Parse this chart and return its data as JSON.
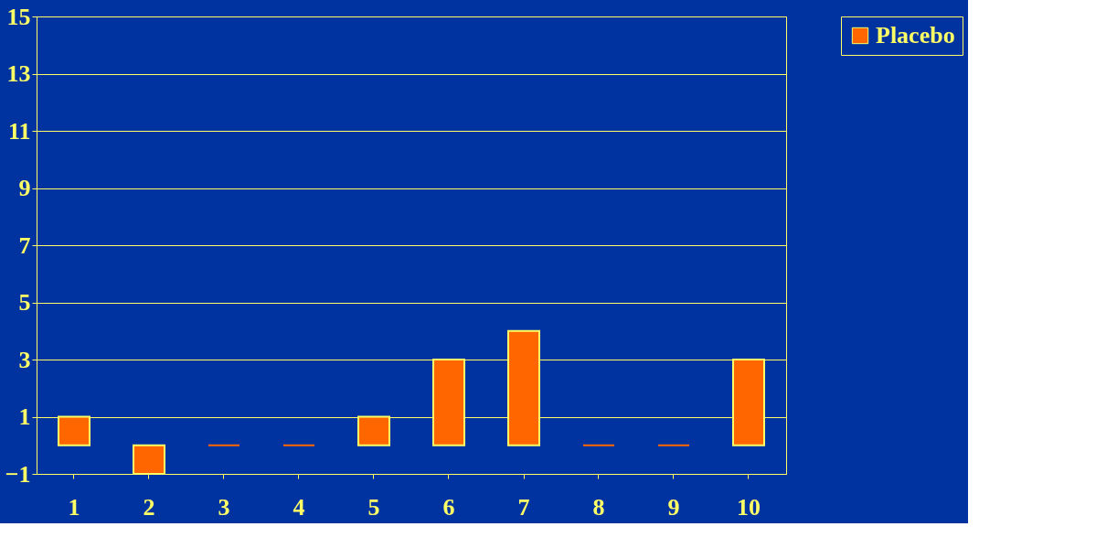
{
  "chart_data": {
    "type": "bar",
    "categories": [
      "1",
      "2",
      "3",
      "4",
      "5",
      "6",
      "7",
      "8",
      "9",
      "10"
    ],
    "series": [
      {
        "name": "Placebo",
        "color": "#ff6600",
        "values": [
          1,
          -1,
          0,
          0,
          1,
          3,
          4,
          0,
          0,
          3
        ]
      }
    ],
    "ylim": [
      -1,
      15
    ],
    "yticks": [
      -1,
      1,
      3,
      5,
      7,
      9,
      11,
      13,
      15
    ],
    "grid": "y",
    "legend": "right"
  }
}
